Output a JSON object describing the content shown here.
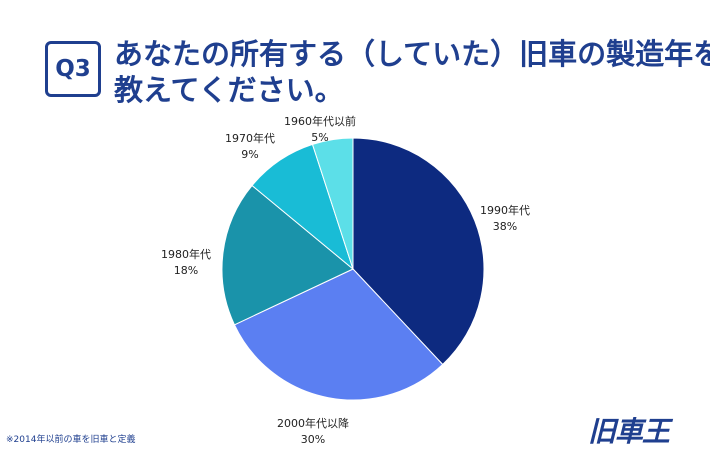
{
  "header": {
    "badge": "Q3",
    "question_line1": "あなたの所有する（していた）旧車の製造年を",
    "question_line2": "教えてください。"
  },
  "chart_data": {
    "type": "pie",
    "title": "",
    "slices": [
      {
        "label": "1990年代",
        "value": 38,
        "value_label": "38%",
        "color": "#0d2a80"
      },
      {
        "label": "2000年代以降",
        "value": 30,
        "value_label": "30%",
        "color": "#5b7ff2"
      },
      {
        "label": "1980年代",
        "value": 18,
        "value_label": "18%",
        "color": "#1a93aa"
      },
      {
        "label": "1970年代",
        "value": 9,
        "value_label": "9%",
        "color": "#19bcd6"
      },
      {
        "label": "1960年代以前",
        "value": 5,
        "value_label": "5%",
        "color": "#5cdfe8"
      }
    ],
    "start": "top",
    "direction": "clockwise"
  },
  "footer": {
    "footnote": "※2014年以前の車を旧車と定義",
    "logo": "旧車王"
  }
}
